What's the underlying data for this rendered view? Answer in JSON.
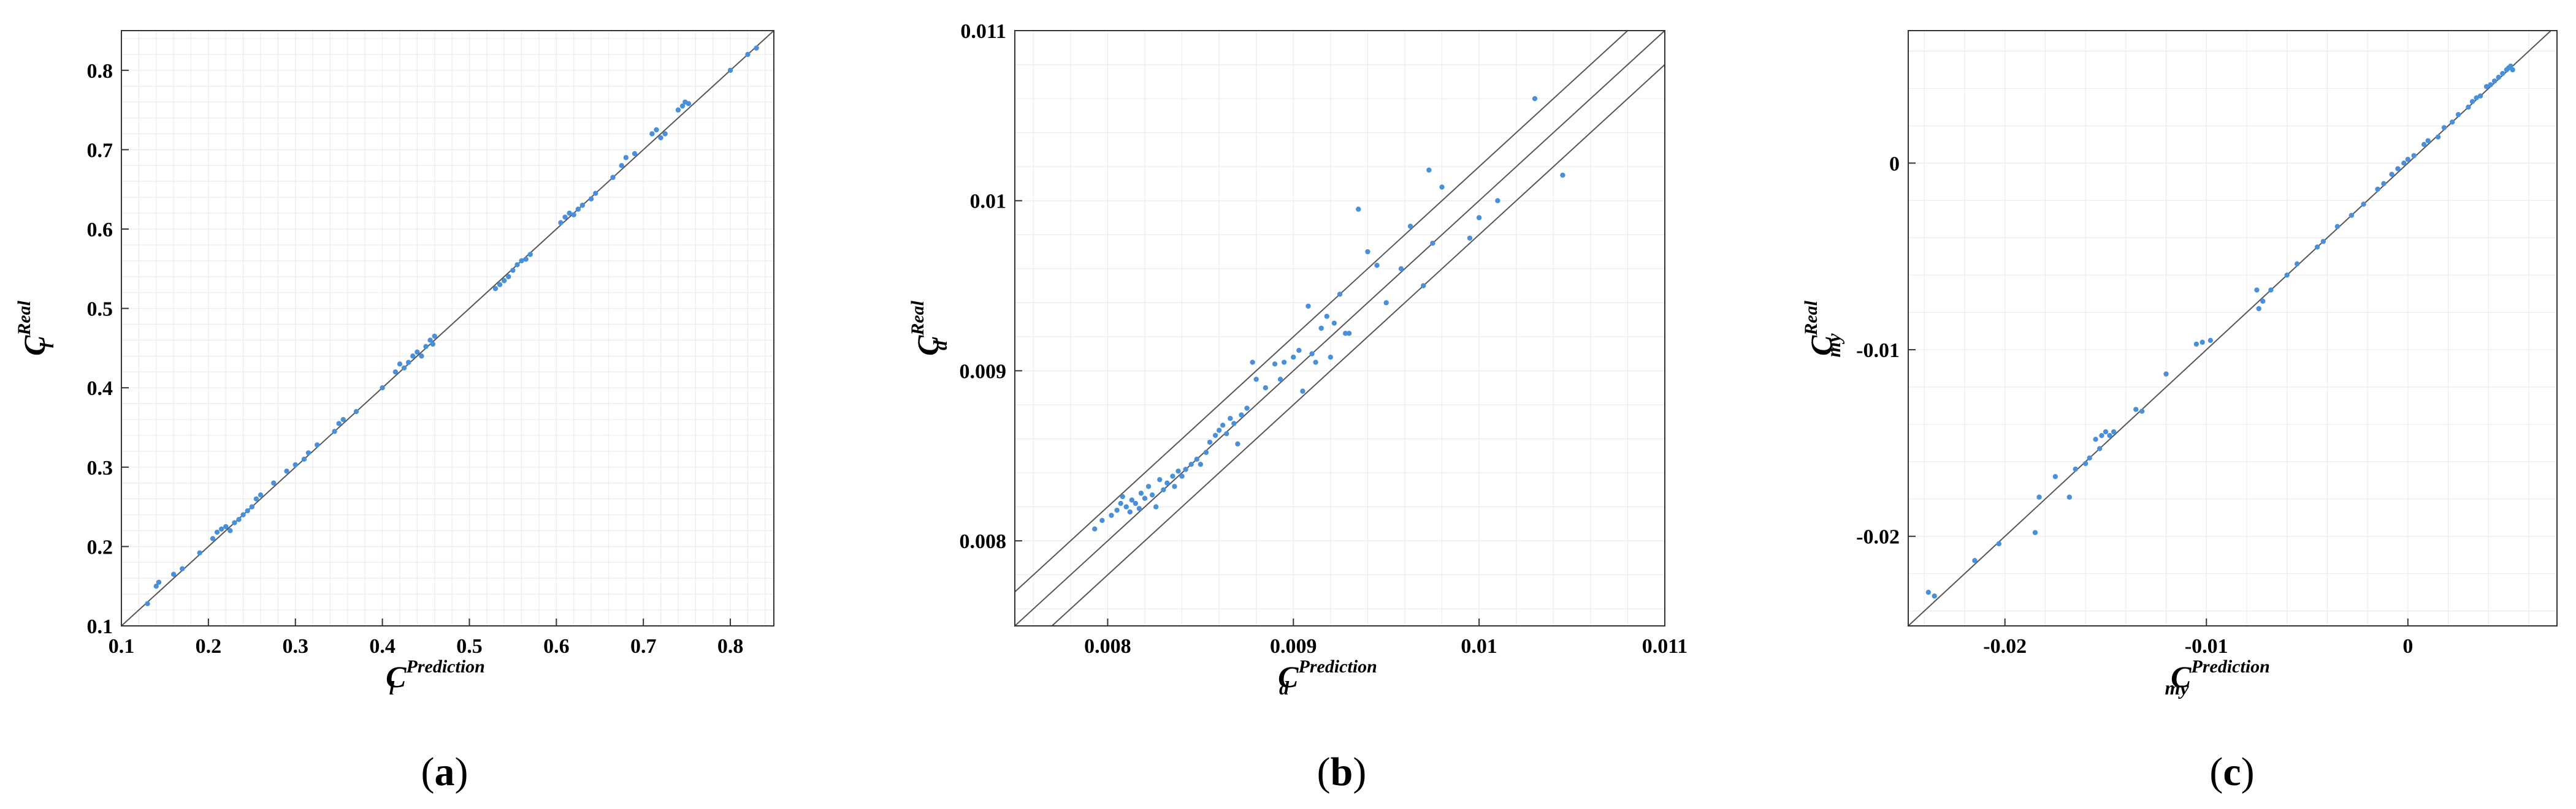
{
  "chart_data": [
    {
      "type": "scatter",
      "panel_label": {
        "open": "(",
        "letter": "a",
        "close": ")"
      },
      "xlabel": {
        "main": "C",
        "sub": "l",
        "sup": "Prediction"
      },
      "ylabel": {
        "main": "C",
        "sub": "l",
        "sup": "Real"
      },
      "xlim": [
        0.1,
        0.85
      ],
      "ylim": [
        0.1,
        0.85
      ],
      "xticks": [
        0.1,
        0.2,
        0.3,
        0.4,
        0.5,
        0.6,
        0.7,
        0.8
      ],
      "xtick_labels": [
        "0.1",
        "0.2",
        "0.3",
        "0.4",
        "0.5",
        "0.6",
        "0.7",
        "0.8"
      ],
      "yticks": [
        0.1,
        0.2,
        0.3,
        0.4,
        0.5,
        0.6,
        0.7,
        0.8
      ],
      "ytick_labels": [
        "0.1",
        "0.2",
        "0.3",
        "0.4",
        "0.5",
        "0.6",
        "0.7",
        "0.8"
      ],
      "grid": true,
      "reference_lines": [
        {
          "slope": 1,
          "offset": 0
        }
      ],
      "point_color": "#4a90d9",
      "points": [
        [
          0.13,
          0.128
        ],
        [
          0.14,
          0.15
        ],
        [
          0.143,
          0.155
        ],
        [
          0.16,
          0.165
        ],
        [
          0.17,
          0.172
        ],
        [
          0.19,
          0.192
        ],
        [
          0.205,
          0.21
        ],
        [
          0.21,
          0.218
        ],
        [
          0.215,
          0.222
        ],
        [
          0.22,
          0.225
        ],
        [
          0.225,
          0.22
        ],
        [
          0.23,
          0.23
        ],
        [
          0.235,
          0.234
        ],
        [
          0.24,
          0.24
        ],
        [
          0.245,
          0.245
        ],
        [
          0.25,
          0.25
        ],
        [
          0.255,
          0.26
        ],
        [
          0.26,
          0.265
        ],
        [
          0.275,
          0.28
        ],
        [
          0.29,
          0.295
        ],
        [
          0.3,
          0.303
        ],
        [
          0.31,
          0.31
        ],
        [
          0.315,
          0.318
        ],
        [
          0.325,
          0.328
        ],
        [
          0.345,
          0.345
        ],
        [
          0.35,
          0.355
        ],
        [
          0.355,
          0.36
        ],
        [
          0.37,
          0.37
        ],
        [
          0.4,
          0.4
        ],
        [
          0.415,
          0.42
        ],
        [
          0.42,
          0.43
        ],
        [
          0.425,
          0.425
        ],
        [
          0.43,
          0.432
        ],
        [
          0.435,
          0.44
        ],
        [
          0.44,
          0.445
        ],
        [
          0.445,
          0.44
        ],
        [
          0.45,
          0.452
        ],
        [
          0.455,
          0.46
        ],
        [
          0.458,
          0.455
        ],
        [
          0.46,
          0.465
        ],
        [
          0.53,
          0.525
        ],
        [
          0.535,
          0.53
        ],
        [
          0.54,
          0.535
        ],
        [
          0.545,
          0.54
        ],
        [
          0.55,
          0.548
        ],
        [
          0.555,
          0.555
        ],
        [
          0.56,
          0.56
        ],
        [
          0.565,
          0.562
        ],
        [
          0.57,
          0.568
        ],
        [
          0.605,
          0.608
        ],
        [
          0.61,
          0.615
        ],
        [
          0.615,
          0.62
        ],
        [
          0.62,
          0.618
        ],
        [
          0.625,
          0.625
        ],
        [
          0.63,
          0.63
        ],
        [
          0.64,
          0.638
        ],
        [
          0.645,
          0.645
        ],
        [
          0.665,
          0.665
        ],
        [
          0.675,
          0.68
        ],
        [
          0.68,
          0.69
        ],
        [
          0.69,
          0.695
        ],
        [
          0.71,
          0.72
        ],
        [
          0.715,
          0.725
        ],
        [
          0.72,
          0.715
        ],
        [
          0.725,
          0.72
        ],
        [
          0.74,
          0.75
        ],
        [
          0.745,
          0.755
        ],
        [
          0.748,
          0.76
        ],
        [
          0.752,
          0.758
        ],
        [
          0.8,
          0.8
        ],
        [
          0.82,
          0.82
        ],
        [
          0.83,
          0.828
        ]
      ]
    },
    {
      "type": "scatter",
      "panel_label": {
        "open": "(",
        "letter": "b",
        "close": ")"
      },
      "xlabel": {
        "main": "C",
        "sub": "d",
        "sup": "Prediction"
      },
      "ylabel": {
        "main": "C",
        "sub": "d",
        "sup": "Real"
      },
      "xlim": [
        0.0075,
        0.011
      ],
      "ylim": [
        0.0075,
        0.011
      ],
      "xticks": [
        0.008,
        0.009,
        0.01,
        0.011
      ],
      "xtick_labels": [
        "0.008",
        "0.009",
        "0.01",
        "0.011"
      ],
      "yticks": [
        0.008,
        0.009,
        0.01,
        0.011
      ],
      "ytick_labels": [
        "0.008",
        "0.009",
        "0.01",
        "0.011"
      ],
      "grid": true,
      "reference_lines": [
        {
          "slope": 1,
          "offset": 0.0002
        },
        {
          "slope": 1,
          "offset": 0
        },
        {
          "slope": 1,
          "offset": -0.0002
        }
      ],
      "point_color": "#4a90d9",
      "points": [
        [
          0.00793,
          0.00807
        ],
        [
          0.00797,
          0.00812
        ],
        [
          0.00802,
          0.00815
        ],
        [
          0.00805,
          0.00818
        ],
        [
          0.00807,
          0.00822
        ],
        [
          0.00808,
          0.00826
        ],
        [
          0.0081,
          0.0082
        ],
        [
          0.00812,
          0.00817
        ],
        [
          0.00813,
          0.00824
        ],
        [
          0.00815,
          0.00822
        ],
        [
          0.00817,
          0.00819
        ],
        [
          0.00818,
          0.00828
        ],
        [
          0.0082,
          0.00825
        ],
        [
          0.00822,
          0.00832
        ],
        [
          0.00824,
          0.00827
        ],
        [
          0.00826,
          0.0082
        ],
        [
          0.00828,
          0.00836
        ],
        [
          0.0083,
          0.0083
        ],
        [
          0.00832,
          0.00834
        ],
        [
          0.00835,
          0.00838
        ],
        [
          0.00836,
          0.00832
        ],
        [
          0.00838,
          0.00841
        ],
        [
          0.0084,
          0.00838
        ],
        [
          0.00842,
          0.00842
        ],
        [
          0.00845,
          0.00845
        ],
        [
          0.00848,
          0.00848
        ],
        [
          0.0085,
          0.00845
        ],
        [
          0.00853,
          0.00852
        ],
        [
          0.00855,
          0.00858
        ],
        [
          0.00858,
          0.00862
        ],
        [
          0.0086,
          0.00865
        ],
        [
          0.00862,
          0.00868
        ],
        [
          0.00864,
          0.00863
        ],
        [
          0.00866,
          0.00872
        ],
        [
          0.00868,
          0.00869
        ],
        [
          0.0087,
          0.00857
        ],
        [
          0.00872,
          0.00874
        ],
        [
          0.00875,
          0.00878
        ],
        [
          0.00878,
          0.00905
        ],
        [
          0.0088,
          0.00895
        ],
        [
          0.00885,
          0.0089
        ],
        [
          0.0089,
          0.00904
        ],
        [
          0.00893,
          0.00895
        ],
        [
          0.00895,
          0.00905
        ],
        [
          0.009,
          0.00908
        ],
        [
          0.00903,
          0.00912
        ],
        [
          0.00905,
          0.00888
        ],
        [
          0.00908,
          0.00938
        ],
        [
          0.0091,
          0.0091
        ],
        [
          0.00912,
          0.00905
        ],
        [
          0.00915,
          0.00925
        ],
        [
          0.00918,
          0.00932
        ],
        [
          0.0092,
          0.00908
        ],
        [
          0.00922,
          0.00928
        ],
        [
          0.00925,
          0.00945
        ],
        [
          0.00928,
          0.00922
        ],
        [
          0.0093,
          0.00922
        ],
        [
          0.00935,
          0.00995
        ],
        [
          0.0094,
          0.0097
        ],
        [
          0.00945,
          0.00962
        ],
        [
          0.0095,
          0.0094
        ],
        [
          0.00958,
          0.0096
        ],
        [
          0.00963,
          0.00985
        ],
        [
          0.0097,
          0.0095
        ],
        [
          0.00973,
          0.01018
        ],
        [
          0.00975,
          0.00975
        ],
        [
          0.0098,
          0.01008
        ],
        [
          0.00995,
          0.00978
        ],
        [
          0.01,
          0.0099
        ],
        [
          0.0101,
          0.01
        ],
        [
          0.0103,
          0.0106
        ],
        [
          0.01045,
          0.01015
        ]
      ]
    },
    {
      "type": "scatter",
      "panel_label": {
        "open": "(",
        "letter": "c",
        "close": ")"
      },
      "xlabel": {
        "main": "C",
        "sub": "my",
        "sup": "Prediction"
      },
      "ylabel": {
        "main": "C",
        "sub": "my",
        "sup": "Real"
      },
      "xlim": [
        -0.0248,
        0.0074
      ],
      "ylim": [
        -0.0248,
        0.0071
      ],
      "xticks": [
        -0.02,
        -0.01,
        0
      ],
      "xtick_labels": [
        "-0.02",
        "-0.01",
        "0"
      ],
      "yticks": [
        -0.02,
        -0.01,
        0
      ],
      "ytick_labels": [
        "-0.02",
        "-0.01",
        "0"
      ],
      "grid": true,
      "reference_lines": [
        {
          "slope": 1,
          "offset": 0
        }
      ],
      "point_color": "#4a90d9",
      "points": [
        [
          -0.0238,
          -0.023
        ],
        [
          -0.0235,
          -0.0232
        ],
        [
          -0.0215,
          -0.0213
        ],
        [
          -0.0203,
          -0.0204
        ],
        [
          -0.0185,
          -0.0198
        ],
        [
          -0.0183,
          -0.0179
        ],
        [
          -0.0175,
          -0.0168
        ],
        [
          -0.0168,
          -0.0179
        ],
        [
          -0.0165,
          -0.0164
        ],
        [
          -0.016,
          -0.0161
        ],
        [
          -0.0158,
          -0.0158
        ],
        [
          -0.0155,
          -0.0148
        ],
        [
          -0.0153,
          -0.0153
        ],
        [
          -0.0152,
          -0.0146
        ],
        [
          -0.015,
          -0.0144
        ],
        [
          -0.0148,
          -0.0146
        ],
        [
          -0.0146,
          -0.0144
        ],
        [
          -0.0135,
          -0.0132
        ],
        [
          -0.0132,
          -0.0133
        ],
        [
          -0.012,
          -0.0113
        ],
        [
          -0.0105,
          -0.0097
        ],
        [
          -0.0102,
          -0.0096
        ],
        [
          -0.0098,
          -0.0095
        ],
        [
          -0.0075,
          -0.0068
        ],
        [
          -0.0074,
          -0.0078
        ],
        [
          -0.0072,
          -0.0074
        ],
        [
          -0.0068,
          -0.0068
        ],
        [
          -0.006,
          -0.006
        ],
        [
          -0.0055,
          -0.0054
        ],
        [
          -0.0045,
          -0.0045
        ],
        [
          -0.0042,
          -0.0042
        ],
        [
          -0.0035,
          -0.0034
        ],
        [
          -0.0028,
          -0.0028
        ],
        [
          -0.0022,
          -0.0022
        ],
        [
          -0.0015,
          -0.0014
        ],
        [
          -0.0012,
          -0.0011
        ],
        [
          -0.0008,
          -0.0006
        ],
        [
          -0.0005,
          -0.0003
        ],
        [
          -0.0002,
          0.0
        ],
        [
          0.0,
          0.0002
        ],
        [
          0.0003,
          0.0004
        ],
        [
          0.0008,
          0.001
        ],
        [
          0.001,
          0.0012
        ],
        [
          0.0015,
          0.0014
        ],
        [
          0.0018,
          0.0019
        ],
        [
          0.0022,
          0.0022
        ],
        [
          0.0025,
          0.0026
        ],
        [
          0.003,
          0.003
        ],
        [
          0.0032,
          0.0033
        ],
        [
          0.0034,
          0.0035
        ],
        [
          0.0036,
          0.0036
        ],
        [
          0.0039,
          0.0041
        ],
        [
          0.0041,
          0.0042
        ],
        [
          0.0043,
          0.0044
        ],
        [
          0.0045,
          0.0046
        ],
        [
          0.0047,
          0.0048
        ],
        [
          0.0049,
          0.005
        ],
        [
          0.005,
          0.0051
        ],
        [
          0.0051,
          0.0052
        ],
        [
          0.0052,
          0.005
        ]
      ]
    }
  ]
}
